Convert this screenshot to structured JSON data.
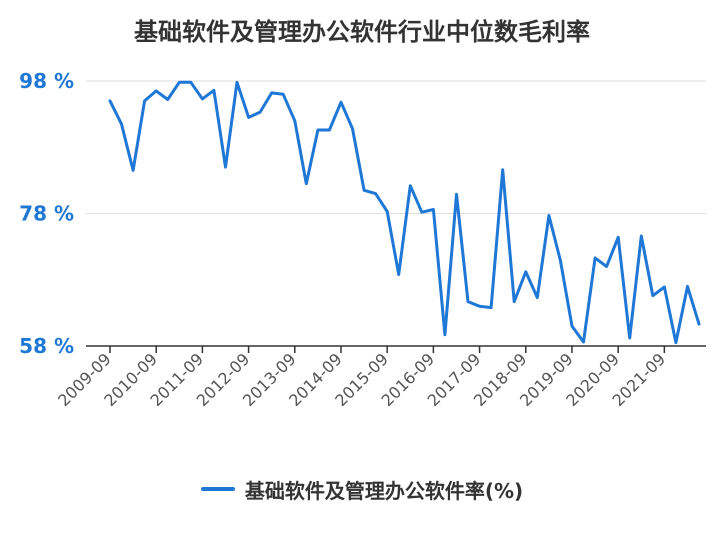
{
  "chart_data": {
    "type": "line",
    "title": "基础软件及管理办公软件行业中位数毛利率",
    "xlabel": "",
    "ylabel": "",
    "ylim": [
      58,
      98
    ],
    "yticks": [
      58,
      78,
      98
    ],
    "ytick_labels": [
      "58 %",
      "78 %",
      "98 %"
    ],
    "xtick_labels": [
      "2009-09",
      "2010-09",
      "2011-09",
      "2012-09",
      "2013-09",
      "2014-09",
      "2015-09",
      "2016-09",
      "2017-09",
      "2018-09",
      "2019-09",
      "2020-09",
      "2021-09"
    ],
    "grid": "horizontal",
    "legend_position": "bottom",
    "color": "#1f77d6",
    "series": [
      {
        "name": "基础软件及管理办公软件率(%)",
        "values": [
          95.0,
          91.5,
          84.5,
          95.0,
          96.5,
          95.2,
          97.8,
          97.8,
          95.3,
          96.6,
          85.0,
          97.8,
          92.5,
          93.3,
          96.2,
          96.0,
          92.0,
          82.5,
          90.6,
          90.6,
          94.8,
          90.8,
          81.5,
          81.0,
          78.3,
          68.8,
          82.2,
          78.2,
          78.6,
          59.7,
          80.9,
          64.7,
          64.0,
          63.8,
          84.6,
          64.7,
          69.2,
          65.3,
          77.7,
          70.9,
          61.0,
          58.6,
          71.3,
          70.0,
          74.4,
          59.2,
          74.6,
          65.6,
          66.9,
          58.5,
          67.0,
          61.3
        ]
      }
    ]
  }
}
